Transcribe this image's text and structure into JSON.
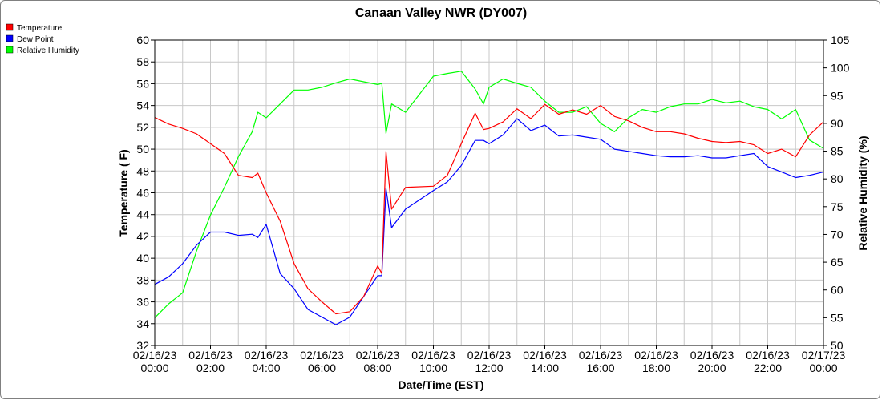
{
  "chart_data": {
    "type": "line",
    "title": "Canaan Valley NWR (DY007)",
    "xlabel": "Date/Time (EST)",
    "ylabel": "Temperature ( F)",
    "y2label": "Relative Humidity (%)",
    "ylim": [
      32,
      60
    ],
    "y2lim": [
      50,
      105
    ],
    "yticks": [
      "32",
      "34",
      "36",
      "38",
      "40",
      "42",
      "44",
      "46",
      "48",
      "50",
      "52",
      "54",
      "56",
      "58",
      "60"
    ],
    "y2ticks": [
      "50",
      "55",
      "60",
      "65",
      "70",
      "75",
      "80",
      "85",
      "90",
      "95",
      "100",
      "105"
    ],
    "xlim": [
      0,
      24
    ],
    "xticks": [
      {
        "hour": 0,
        "date": "02/16/23",
        "time": "00:00"
      },
      {
        "hour": 2,
        "date": "02/16/23",
        "time": "02:00"
      },
      {
        "hour": 4,
        "date": "02/16/23",
        "time": "04:00"
      },
      {
        "hour": 6,
        "date": "02/16/23",
        "time": "06:00"
      },
      {
        "hour": 8,
        "date": "02/16/23",
        "time": "08:00"
      },
      {
        "hour": 10,
        "date": "02/16/23",
        "time": "10:00"
      },
      {
        "hour": 12,
        "date": "02/16/23",
        "time": "12:00"
      },
      {
        "hour": 14,
        "date": "02/16/23",
        "time": "14:00"
      },
      {
        "hour": 16,
        "date": "02/16/23",
        "time": "16:00"
      },
      {
        "hour": 18,
        "date": "02/16/23",
        "time": "18:00"
      },
      {
        "hour": 20,
        "date": "02/16/23",
        "time": "20:00"
      },
      {
        "hour": 22,
        "date": "02/16/23",
        "time": "22:00"
      },
      {
        "hour": 24,
        "date": "02/17/23",
        "time": "00:00"
      }
    ],
    "grid": true,
    "legend_position": "top-left",
    "series": [
      {
        "name": "Temperature",
        "color": "#ff0000",
        "axis": "left",
        "x": [
          0,
          0.5,
          1,
          1.5,
          2,
          2.5,
          3,
          3.5,
          3.7,
          4,
          4.5,
          5,
          5.5,
          6,
          6.5,
          7,
          7.5,
          8,
          8.15,
          8.3,
          8.5,
          9,
          10,
          10.5,
          11,
          11.5,
          11.8,
          12,
          12.5,
          13,
          13.5,
          14,
          14.5,
          15,
          15.5,
          16,
          16.5,
          17,
          17.5,
          18,
          18.5,
          19,
          19.5,
          20,
          20.5,
          21,
          21.5,
          22,
          22.5,
          23,
          23.5,
          24
        ],
        "values": [
          52.9,
          52.3,
          51.9,
          51.4,
          50.5,
          49.6,
          47.6,
          47.4,
          47.8,
          46,
          43.4,
          39.5,
          37.2,
          36,
          34.9,
          35.1,
          36.5,
          39.3,
          38.6,
          49.8,
          44.5,
          46.5,
          46.6,
          47.6,
          50.5,
          53.3,
          51.8,
          51.9,
          52.5,
          53.7,
          52.8,
          54.1,
          53.2,
          53.6,
          53.2,
          54,
          53,
          52.6,
          52,
          51.6,
          51.6,
          51.4,
          51,
          50.7,
          50.6,
          50.7,
          50.4,
          49.6,
          50,
          49.3,
          51.3,
          52.5
        ]
      },
      {
        "name": "Dew Point",
        "color": "#0000ff",
        "axis": "left",
        "x": [
          0,
          0.5,
          1,
          1.5,
          2,
          2.5,
          3,
          3.5,
          3.7,
          4,
          4.5,
          5,
          5.5,
          6,
          6.5,
          7,
          7.5,
          8,
          8.15,
          8.3,
          8.5,
          9,
          10,
          10.5,
          11,
          11.5,
          11.8,
          12,
          12.5,
          13,
          13.5,
          14,
          14.5,
          15,
          15.5,
          16,
          16.5,
          17,
          17.5,
          18,
          18.5,
          19,
          19.5,
          20,
          20.5,
          21,
          21.5,
          22,
          22.5,
          23,
          23.5,
          24
        ],
        "values": [
          37.6,
          38.3,
          39.5,
          41.2,
          42.4,
          42.4,
          42.1,
          42.2,
          41.9,
          43.1,
          38.6,
          37.2,
          35.3,
          34.6,
          33.9,
          34.6,
          36.5,
          38.4,
          38.4,
          46.4,
          42.8,
          44.5,
          46.2,
          47,
          48.5,
          50.8,
          50.8,
          50.5,
          51.3,
          52.8,
          51.7,
          52.2,
          51.2,
          51.3,
          51.1,
          50.9,
          50,
          49.8,
          49.6,
          49.4,
          49.3,
          49.3,
          49.4,
          49.2,
          49.2,
          49.4,
          49.6,
          48.4,
          47.9,
          47.4,
          47.6,
          47.9
        ]
      },
      {
        "name": "Relative Humidity",
        "color": "#00ff00",
        "axis": "right",
        "x": [
          0,
          0.5,
          1,
          1.5,
          2,
          2.5,
          3,
          3.5,
          3.7,
          4,
          4.5,
          5,
          5.5,
          6,
          6.5,
          7,
          7.5,
          8,
          8.15,
          8.3,
          8.5,
          9,
          10,
          10.5,
          11,
          11.5,
          11.8,
          12,
          12.5,
          13,
          13.5,
          14,
          14.5,
          15,
          15.5,
          16,
          16.5,
          17,
          17.5,
          18,
          18.5,
          19,
          19.5,
          20,
          20.5,
          21,
          21.5,
          22,
          22.5,
          23,
          23.5,
          24
        ],
        "values": [
          55,
          57.5,
          59.5,
          67,
          73.5,
          78.5,
          84,
          88.5,
          92,
          91,
          93.5,
          96,
          96,
          96.5,
          97.3,
          98,
          97.5,
          97,
          97.2,
          88.2,
          93.5,
          92,
          98.5,
          99,
          99.4,
          96.2,
          93.5,
          96.5,
          98,
          97.2,
          96.5,
          94,
          92,
          92,
          93,
          90,
          88.5,
          91,
          92.5,
          92,
          93,
          93.5,
          93.5,
          94.3,
          93.7,
          94,
          93,
          92.5,
          90.8,
          92.5,
          87,
          85.5
        ]
      }
    ]
  }
}
